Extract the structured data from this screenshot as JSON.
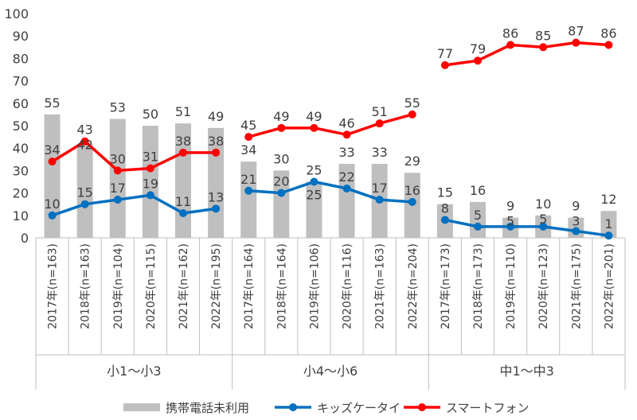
{
  "chart_data": {
    "type": "bar",
    "ylim": [
      0,
      100
    ],
    "yticks": [
      0,
      10,
      20,
      30,
      40,
      50,
      60,
      70,
      80,
      90,
      100
    ],
    "grid": false,
    "legend_position": "bottom",
    "groups": [
      {
        "name": "小1〜小3",
        "categories": [
          "2017年(n=163)",
          "2018年(n=163)",
          "2019年(n=104)",
          "2020年(n=115)",
          "2021年(n=162)",
          "2022年(n=195)"
        ],
        "series": [
          {
            "name": "携帯電話未利用",
            "kind": "bar",
            "values": [
              55,
              42,
              53,
              50,
              51,
              49
            ],
            "labels": [
              "55",
              "42",
              "53",
              "50",
              "51",
              "49"
            ]
          },
          {
            "name": "キッズケータイ",
            "kind": "line",
            "values": [
              10,
              15,
              17,
              19,
              11,
              13
            ],
            "labels": [
              "10",
              "15",
              "17",
              "19",
              "11",
              "13"
            ]
          },
          {
            "name": "スマートフォン",
            "kind": "line",
            "values": [
              34,
              43,
              30,
              31,
              38,
              38
            ],
            "labels": [
              "34",
              "43",
              "30",
              "31",
              "38",
              "38"
            ]
          }
        ]
      },
      {
        "name": "小4〜小6",
        "categories": [
          "2017年(n=164)",
          "2018年(n=164)",
          "2019年(n=106)",
          "2020年(n=116)",
          "2021年(n=163)",
          "2022年(n=204)"
        ],
        "series": [
          {
            "name": "携帯電話未利用",
            "kind": "bar",
            "values": [
              34,
              30,
              25,
              33,
              33,
              29
            ],
            "labels": [
              "34",
              "30",
              "25",
              "33",
              "33",
              "29"
            ]
          },
          {
            "name": "キッズケータイ",
            "kind": "line",
            "values": [
              21,
              20,
              25,
              22,
              17,
              16
            ],
            "labels": [
              "21",
              "20",
              "25",
              "22",
              "17",
              "16"
            ]
          },
          {
            "name": "スマートフォン",
            "kind": "line",
            "values": [
              45,
              49,
              49,
              46,
              51,
              55
            ],
            "labels": [
              "45",
              "49",
              "49",
              "46",
              "51",
              "55"
            ]
          }
        ]
      },
      {
        "name": "中1〜中3",
        "categories": [
          "2017年(n=173)",
          "2018年(n=173)",
          "2019年(n=110)",
          "2020年(n=123)",
          "2021年(n=175)",
          "2022年(n=201)"
        ],
        "series": [
          {
            "name": "携帯電話未利用",
            "kind": "bar",
            "values": [
              15,
              16,
              9,
              10,
              9,
              12
            ],
            "labels": [
              "15",
              "16",
              "9",
              "10",
              "9",
              "12"
            ]
          },
          {
            "name": "キッズケータイ",
            "kind": "line",
            "values": [
              8,
              5,
              5,
              5,
              3,
              1
            ],
            "labels": [
              "8",
              "5",
              "5",
              "5",
              "3",
              "1"
            ]
          },
          {
            "name": "スマートフォン",
            "kind": "line",
            "values": [
              77,
              79,
              86,
              85,
              87,
              86
            ],
            "labels": [
              "77",
              "79",
              "86",
              "85",
              "87",
              "86"
            ]
          }
        ]
      }
    ],
    "legend": [
      {
        "name": "携帯電話未利用",
        "kind": "bar",
        "color": "#bfbfbf"
      },
      {
        "name": "キッズケータイ",
        "kind": "line",
        "color": "#0070c0"
      },
      {
        "name": "スマートフォン",
        "kind": "line",
        "color": "#ff0000"
      }
    ],
    "colors": {
      "bar": "#bfbfbf",
      "kids": "#0070c0",
      "smart": "#ff0000",
      "axis": "#bfbfbf",
      "text": "#404040"
    }
  }
}
